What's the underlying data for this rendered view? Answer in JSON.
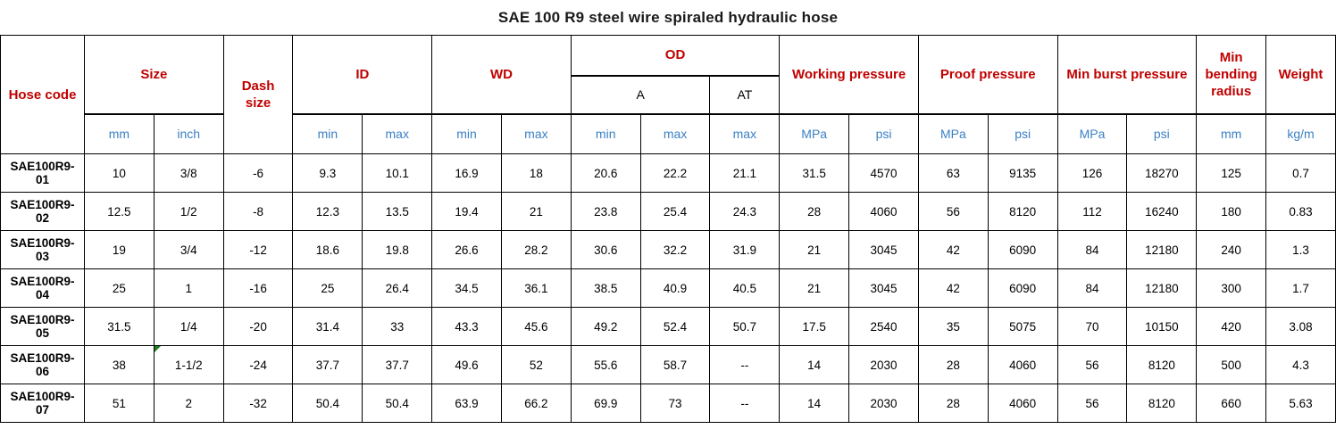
{
  "page_title": "SAE 100 R9 steel wire spiraled hydraulic hose",
  "colors": {
    "header_red": "#c00000",
    "unit_blue": "#3b80c4",
    "border_black": "#000000",
    "flag_green": "#1f7d1f",
    "text_black": "#000000",
    "background": "#ffffff"
  },
  "table_header": {
    "hose_code": "Hose code",
    "size": "Size",
    "dash_size": "Dash size",
    "id": "ID",
    "wd": "WD",
    "od": "OD",
    "od_sub_a": "A",
    "od_sub_at": "AT",
    "working_pressure": "Working pressure",
    "proof_pressure": "Proof pressure",
    "min_burst_pressure": "Min burst pressure",
    "min_bending_radius": "Min bending radius",
    "weight": "Weight",
    "units": [
      "mm",
      "inch",
      "min",
      "max",
      "min",
      "max",
      "min",
      "max",
      "max",
      "MPa",
      "psi",
      "MPa",
      "psi",
      "MPa",
      "psi",
      "mm",
      "kg/m"
    ]
  },
  "chart_data": {
    "type": "table",
    "title": "SAE 100 R9 steel wire spiraled hydraulic hose",
    "col_keys": [
      "hose-code",
      "size-mm",
      "size-inch",
      "dash-size",
      "id-min",
      "id-max",
      "wd-min",
      "wd-max",
      "od-a-min",
      "od-a-max",
      "od-at-max",
      "working-pressure-mpa",
      "working-pressure-psi",
      "proof-pressure-mpa",
      "proof-pressure-psi",
      "burst-pressure-mpa",
      "burst-pressure-psi",
      "bending-radius-mm",
      "weight-kgm"
    ],
    "rows": [
      [
        "SAE100R9-01",
        "10",
        "3/8",
        "-6",
        "9.3",
        "10.1",
        "16.9",
        "18",
        "20.6",
        "22.2",
        "21.1",
        "31.5",
        "4570",
        "63",
        "9135",
        "126",
        "18270",
        "125",
        "0.7"
      ],
      [
        "SAE100R9-02",
        "12.5",
        "1/2",
        "-8",
        "12.3",
        "13.5",
        "19.4",
        "21",
        "23.8",
        "25.4",
        "24.3",
        "28",
        "4060",
        "56",
        "8120",
        "112",
        "16240",
        "180",
        "0.83"
      ],
      [
        "SAE100R9-03",
        "19",
        "3/4",
        "-12",
        "18.6",
        "19.8",
        "26.6",
        "28.2",
        "30.6",
        "32.2",
        "31.9",
        "21",
        "3045",
        "42",
        "6090",
        "84",
        "12180",
        "240",
        "1.3"
      ],
      [
        "SAE100R9-04",
        "25",
        "1",
        "-16",
        "25",
        "26.4",
        "34.5",
        "36.1",
        "38.5",
        "40.9",
        "40.5",
        "21",
        "3045",
        "42",
        "6090",
        "84",
        "12180",
        "300",
        "1.7"
      ],
      [
        "SAE100R9-05",
        "31.5",
        "1/4",
        "-20",
        "31.4",
        "33",
        "43.3",
        "45.6",
        "49.2",
        "52.4",
        "50.7",
        "17.5",
        "2540",
        "35",
        "5075",
        "70",
        "10150",
        "420",
        "3.08"
      ],
      [
        "SAE100R9-06",
        "38",
        "1-1/2",
        "-24",
        "37.7",
        "37.7",
        "49.6",
        "52",
        "55.6",
        "58.7",
        "--",
        "14",
        "2030",
        "28",
        "4060",
        "56",
        "8120",
        "500",
        "4.3"
      ],
      [
        "SAE100R9-07",
        "51",
        "2",
        "-32",
        "50.4",
        "50.4",
        "63.9",
        "66.2",
        "69.9",
        "73",
        "--",
        "14",
        "2030",
        "28",
        "4060",
        "56",
        "8120",
        "660",
        "5.63"
      ]
    ],
    "cell_flag": {
      "row": 5,
      "col": 2,
      "note": "green corner triangle flag on inch cell of SAE100R9-06"
    }
  }
}
